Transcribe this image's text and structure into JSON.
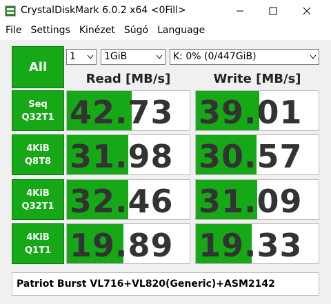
{
  "window": {
    "title": "CrystalDiskMark 6.0.2 x64 <0Fill>",
    "menu": [
      "File",
      "Settings",
      "Kinézet",
      "Súgó",
      "Language"
    ]
  },
  "toolbar": {
    "all_button": "All",
    "count": "1",
    "size": "1GiB",
    "drive": "K: 0% (0/447GiB)"
  },
  "headers": {
    "read": "Read [MB/s]",
    "write": "Write [MB/s]"
  },
  "rows": [
    {
      "label": [
        "Seq",
        "Q32T1"
      ],
      "read": 42.73,
      "write": 39.01
    },
    {
      "label": [
        "4KiB",
        "Q8T8"
      ],
      "read": 31.98,
      "write": 30.57
    },
    {
      "label": [
        "4KiB",
        "Q32T1"
      ],
      "read": 32.46,
      "write": 31.09
    },
    {
      "label": [
        "4KiB",
        "Q1T1"
      ],
      "read": 19.89,
      "write": 19.33
    }
  ],
  "footer": "Patriot Burst VL716+VL820(Generic)+ASM2142"
}
